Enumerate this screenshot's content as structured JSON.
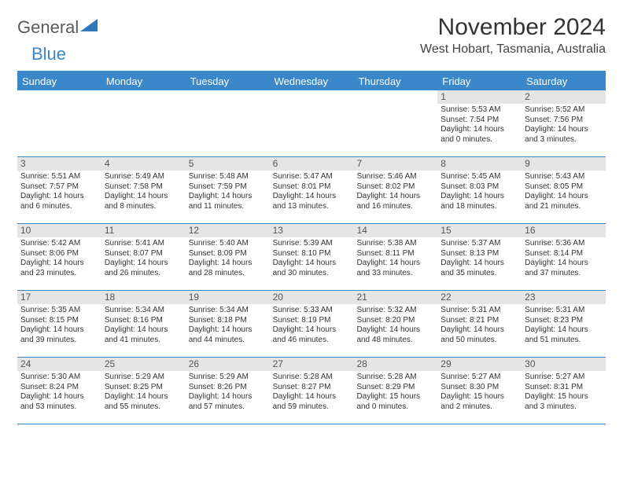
{
  "logo": {
    "general": "General",
    "blue": "Blue"
  },
  "title": "November 2024",
  "location": "West Hobart, Tasmania, Australia",
  "colors": {
    "header_bg": "#3a87c9",
    "daynum_bg": "#e5e5e5",
    "border": "#3a87c9",
    "text": "#333333",
    "location_text": "#444444"
  },
  "dayHeaders": [
    "Sunday",
    "Monday",
    "Tuesday",
    "Wednesday",
    "Thursday",
    "Friday",
    "Saturday"
  ],
  "weeks": [
    [
      {
        "day": "",
        "sunrise": "",
        "sunset": "",
        "daylight": ""
      },
      {
        "day": "",
        "sunrise": "",
        "sunset": "",
        "daylight": ""
      },
      {
        "day": "",
        "sunrise": "",
        "sunset": "",
        "daylight": ""
      },
      {
        "day": "",
        "sunrise": "",
        "sunset": "",
        "daylight": ""
      },
      {
        "day": "",
        "sunrise": "",
        "sunset": "",
        "daylight": ""
      },
      {
        "day": "1",
        "sunrise": "Sunrise: 5:53 AM",
        "sunset": "Sunset: 7:54 PM",
        "daylight": "Daylight: 14 hours and 0 minutes."
      },
      {
        "day": "2",
        "sunrise": "Sunrise: 5:52 AM",
        "sunset": "Sunset: 7:56 PM",
        "daylight": "Daylight: 14 hours and 3 minutes."
      }
    ],
    [
      {
        "day": "3",
        "sunrise": "Sunrise: 5:51 AM",
        "sunset": "Sunset: 7:57 PM",
        "daylight": "Daylight: 14 hours and 6 minutes."
      },
      {
        "day": "4",
        "sunrise": "Sunrise: 5:49 AM",
        "sunset": "Sunset: 7:58 PM",
        "daylight": "Daylight: 14 hours and 8 minutes."
      },
      {
        "day": "5",
        "sunrise": "Sunrise: 5:48 AM",
        "sunset": "Sunset: 7:59 PM",
        "daylight": "Daylight: 14 hours and 11 minutes."
      },
      {
        "day": "6",
        "sunrise": "Sunrise: 5:47 AM",
        "sunset": "Sunset: 8:01 PM",
        "daylight": "Daylight: 14 hours and 13 minutes."
      },
      {
        "day": "7",
        "sunrise": "Sunrise: 5:46 AM",
        "sunset": "Sunset: 8:02 PM",
        "daylight": "Daylight: 14 hours and 16 minutes."
      },
      {
        "day": "8",
        "sunrise": "Sunrise: 5:45 AM",
        "sunset": "Sunset: 8:03 PM",
        "daylight": "Daylight: 14 hours and 18 minutes."
      },
      {
        "day": "9",
        "sunrise": "Sunrise: 5:43 AM",
        "sunset": "Sunset: 8:05 PM",
        "daylight": "Daylight: 14 hours and 21 minutes."
      }
    ],
    [
      {
        "day": "10",
        "sunrise": "Sunrise: 5:42 AM",
        "sunset": "Sunset: 8:06 PM",
        "daylight": "Daylight: 14 hours and 23 minutes."
      },
      {
        "day": "11",
        "sunrise": "Sunrise: 5:41 AM",
        "sunset": "Sunset: 8:07 PM",
        "daylight": "Daylight: 14 hours and 26 minutes."
      },
      {
        "day": "12",
        "sunrise": "Sunrise: 5:40 AM",
        "sunset": "Sunset: 8:09 PM",
        "daylight": "Daylight: 14 hours and 28 minutes."
      },
      {
        "day": "13",
        "sunrise": "Sunrise: 5:39 AM",
        "sunset": "Sunset: 8:10 PM",
        "daylight": "Daylight: 14 hours and 30 minutes."
      },
      {
        "day": "14",
        "sunrise": "Sunrise: 5:38 AM",
        "sunset": "Sunset: 8:11 PM",
        "daylight": "Daylight: 14 hours and 33 minutes."
      },
      {
        "day": "15",
        "sunrise": "Sunrise: 5:37 AM",
        "sunset": "Sunset: 8:13 PM",
        "daylight": "Daylight: 14 hours and 35 minutes."
      },
      {
        "day": "16",
        "sunrise": "Sunrise: 5:36 AM",
        "sunset": "Sunset: 8:14 PM",
        "daylight": "Daylight: 14 hours and 37 minutes."
      }
    ],
    [
      {
        "day": "17",
        "sunrise": "Sunrise: 5:35 AM",
        "sunset": "Sunset: 8:15 PM",
        "daylight": "Daylight: 14 hours and 39 minutes."
      },
      {
        "day": "18",
        "sunrise": "Sunrise: 5:34 AM",
        "sunset": "Sunset: 8:16 PM",
        "daylight": "Daylight: 14 hours and 41 minutes."
      },
      {
        "day": "19",
        "sunrise": "Sunrise: 5:34 AM",
        "sunset": "Sunset: 8:18 PM",
        "daylight": "Daylight: 14 hours and 44 minutes."
      },
      {
        "day": "20",
        "sunrise": "Sunrise: 5:33 AM",
        "sunset": "Sunset: 8:19 PM",
        "daylight": "Daylight: 14 hours and 46 minutes."
      },
      {
        "day": "21",
        "sunrise": "Sunrise: 5:32 AM",
        "sunset": "Sunset: 8:20 PM",
        "daylight": "Daylight: 14 hours and 48 minutes."
      },
      {
        "day": "22",
        "sunrise": "Sunrise: 5:31 AM",
        "sunset": "Sunset: 8:21 PM",
        "daylight": "Daylight: 14 hours and 50 minutes."
      },
      {
        "day": "23",
        "sunrise": "Sunrise: 5:31 AM",
        "sunset": "Sunset: 8:23 PM",
        "daylight": "Daylight: 14 hours and 51 minutes."
      }
    ],
    [
      {
        "day": "24",
        "sunrise": "Sunrise: 5:30 AM",
        "sunset": "Sunset: 8:24 PM",
        "daylight": "Daylight: 14 hours and 53 minutes."
      },
      {
        "day": "25",
        "sunrise": "Sunrise: 5:29 AM",
        "sunset": "Sunset: 8:25 PM",
        "daylight": "Daylight: 14 hours and 55 minutes."
      },
      {
        "day": "26",
        "sunrise": "Sunrise: 5:29 AM",
        "sunset": "Sunset: 8:26 PM",
        "daylight": "Daylight: 14 hours and 57 minutes."
      },
      {
        "day": "27",
        "sunrise": "Sunrise: 5:28 AM",
        "sunset": "Sunset: 8:27 PM",
        "daylight": "Daylight: 14 hours and 59 minutes."
      },
      {
        "day": "28",
        "sunrise": "Sunrise: 5:28 AM",
        "sunset": "Sunset: 8:29 PM",
        "daylight": "Daylight: 15 hours and 0 minutes."
      },
      {
        "day": "29",
        "sunrise": "Sunrise: 5:27 AM",
        "sunset": "Sunset: 8:30 PM",
        "daylight": "Daylight: 15 hours and 2 minutes."
      },
      {
        "day": "30",
        "sunrise": "Sunrise: 5:27 AM",
        "sunset": "Sunset: 8:31 PM",
        "daylight": "Daylight: 15 hours and 3 minutes."
      }
    ]
  ]
}
